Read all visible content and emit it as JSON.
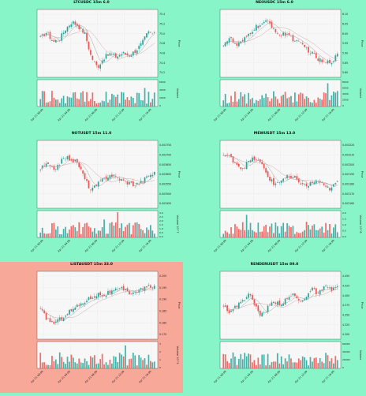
{
  "theme": {
    "background": "#88f5c8",
    "highlight_background": "#f8a898",
    "up_color": "#26a69a",
    "down_color": "#ef5350",
    "ma_color_1": "#9a9a9a",
    "ma_color_2": "#c8a0a0"
  },
  "chart_data": [
    {
      "type": "candlestick",
      "title": "LTCUSDC 15m 6.0",
      "highlighted": false,
      "ylabel": "Price",
      "volume_label": "Volume",
      "price_ticks": [
        "75.4",
        "75.2",
        "75.0",
        "74.8",
        "74.6",
        "74.4",
        "74.2"
      ],
      "volume_ticks": [
        "6000",
        "4000",
        "2000",
        "0"
      ],
      "x_ticks": [
        "Apr 21 00:00",
        "Apr 21 04:00",
        "Apr 21 08:00",
        "Apr 21 12:00",
        "Apr 21 16:00"
      ],
      "trend": [
        0.62,
        0.72,
        0.55,
        0.6,
        0.78,
        0.9,
        0.82,
        0.7,
        0.3,
        0.12,
        0.28,
        0.35,
        0.3,
        0.36,
        0.32,
        0.4,
        0.52,
        0.72,
        0.68
      ]
    },
    {
      "type": "candlestick",
      "title": "NEOUSDC 15m 6.0",
      "highlighted": false,
      "ylabel": "Price",
      "volume_label": "Volume",
      "price_ticks": [
        "6.10",
        "6.05",
        "6.00",
        "5.95",
        "5.90",
        "5.85",
        "5.80"
      ],
      "volume_ticks": [
        "8000",
        "6000",
        "4000",
        "2000",
        "0"
      ],
      "x_ticks": [
        "Apr 21 00:00",
        "Apr 21 04:00",
        "Apr 21 08:00",
        "Apr 21 12:00",
        "Apr 21 16:00"
      ],
      "trend": [
        0.52,
        0.62,
        0.48,
        0.55,
        0.68,
        0.8,
        0.85,
        0.9,
        0.78,
        0.65,
        0.7,
        0.6,
        0.52,
        0.45,
        0.35,
        0.25,
        0.18,
        0.22,
        0.32
      ]
    },
    {
      "type": "candlestick",
      "title": "NOTUSDT 15m 11.0",
      "highlighted": false,
      "ylabel": "Price",
      "volume_label": "Volume 10^7",
      "price_ticks": [
        "0.003750",
        "0.003700",
        "0.003650",
        "0.003600",
        "0.003550",
        "0.003500",
        "0.003450"
      ],
      "volume_ticks": [
        "3.0",
        "2.5",
        "2.0",
        "1.5",
        "1.0",
        "0.5",
        "0.0"
      ],
      "x_ticks": [
        "Apr 21 00:00",
        "Apr 21 04:00",
        "Apr 21 08:00",
        "Apr 21 12:00",
        "Apr 21 16:00"
      ],
      "trend": [
        0.62,
        0.7,
        0.6,
        0.72,
        0.82,
        0.78,
        0.7,
        0.45,
        0.25,
        0.35,
        0.45,
        0.52,
        0.48,
        0.42,
        0.38,
        0.35,
        0.4,
        0.5,
        0.55
      ]
    },
    {
      "type": "candlestick",
      "title": "MEWUSDT 15m 13.0",
      "highlighted": false,
      "ylabel": "Price",
      "volume_label": "Volume 10^8",
      "price_ticks": [
        "0.003220",
        "0.003210",
        "0.003200",
        "0.003190",
        "0.003180",
        "0.003170",
        "0.003160"
      ],
      "volume_ticks": [
        "2.0",
        "1.5",
        "1.0",
        "0.5",
        "0.0"
      ],
      "x_ticks": [
        "Apr 21 00:00",
        "Apr 21 04:00",
        "Apr 21 08:00",
        "Apr 21 12:00",
        "Apr 21 16:00"
      ],
      "trend": [
        0.85,
        0.82,
        0.72,
        0.62,
        0.75,
        0.8,
        0.7,
        0.5,
        0.35,
        0.42,
        0.48,
        0.45,
        0.4,
        0.32,
        0.38,
        0.42,
        0.3,
        0.28,
        0.4
      ]
    },
    {
      "type": "candlestick",
      "title": "LISTAUSDT 15m 33.0",
      "highlighted": true,
      "ylabel": "Price",
      "volume_label": "Volume 10^5",
      "price_ticks": [
        "0.200",
        "0.195",
        "0.190",
        "0.185",
        "0.180",
        "0.175"
      ],
      "volume_ticks": [
        "3",
        "2",
        "1",
        "0"
      ],
      "x_ticks": [
        "Apr 21 00:00",
        "Apr 21 04:00",
        "Apr 21 08:00",
        "Apr 21 12:00",
        "Apr 21 16:00"
      ],
      "trend": [
        0.45,
        0.3,
        0.22,
        0.28,
        0.38,
        0.45,
        0.52,
        0.6,
        0.66,
        0.72,
        0.7,
        0.75,
        0.78,
        0.8,
        0.74,
        0.76,
        0.8,
        0.84,
        0.86
      ]
    },
    {
      "type": "candlestick",
      "title": "RENDERUSDT 15m 89.0",
      "highlighted": false,
      "ylabel": "Price",
      "volume_label": "Volume",
      "price_ticks": [
        "4.450",
        "4.425",
        "4.400",
        "4.375",
        "4.350",
        "4.325",
        "4.300"
      ],
      "volume_ticks": [
        "60000",
        "40000",
        "20000",
        "0"
      ],
      "x_ticks": [
        "Apr 21 00:00",
        "Apr 21 04:00",
        "Apr 21 08:00",
        "Apr 21 12:00",
        "Apr 21 16:00"
      ],
      "trend": [
        0.55,
        0.4,
        0.5,
        0.62,
        0.72,
        0.52,
        0.35,
        0.48,
        0.6,
        0.55,
        0.62,
        0.72,
        0.58,
        0.68,
        0.8,
        0.72,
        0.84,
        0.78,
        0.86
      ]
    }
  ]
}
